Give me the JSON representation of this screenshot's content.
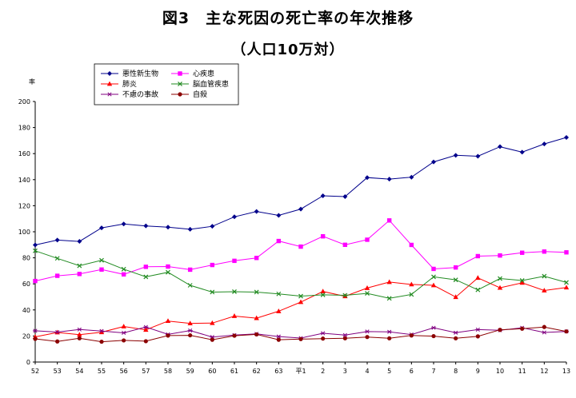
{
  "title": "図3　主な死因の死亡率の年次推移",
  "subtitle": "（人口10万対）",
  "chart_data": {
    "type": "line",
    "ylabel": "率",
    "ylim": [
      0,
      200
    ],
    "yticks": [
      0,
      20,
      40,
      60,
      80,
      100,
      120,
      140,
      160,
      180,
      200
    ],
    "categories": [
      "52",
      "53",
      "54",
      "55",
      "56",
      "57",
      "58",
      "59",
      "60",
      "61",
      "62",
      "63",
      "平1",
      "2",
      "3",
      "4",
      "5",
      "6",
      "7",
      "8",
      "9",
      "10",
      "11",
      "12",
      "13"
    ],
    "legend_position": "top-left",
    "grid": false,
    "series": [
      {
        "name": "悪性新生物",
        "color": "#00008b",
        "marker": "diamond",
        "values": [
          89.9,
          93.6,
          92.6,
          103.0,
          106.0,
          104.5,
          103.5,
          101.9,
          104.2,
          111.5,
          115.6,
          112.6,
          117.4,
          127.6,
          127.0,
          141.6,
          140.4,
          141.9,
          153.6,
          158.7,
          158.0,
          165.3,
          161.1,
          167.4,
          172.4
        ]
      },
      {
        "name": "心疾患",
        "color": "#ff00ff",
        "marker": "square",
        "values": [
          62.2,
          66.2,
          67.6,
          71.0,
          67.3,
          73.1,
          73.3,
          70.9,
          74.5,
          77.7,
          79.9,
          92.9,
          88.6,
          96.5,
          90.0,
          93.9,
          108.7,
          89.9,
          71.5,
          72.6,
          81.3,
          81.8,
          83.9,
          84.8,
          84.2
        ]
      },
      {
        "name": "肺炎",
        "color": "#ff0000",
        "marker": "triangle",
        "values": [
          19.3,
          22.7,
          21.0,
          22.9,
          27.3,
          24.7,
          31.5,
          29.7,
          29.9,
          35.3,
          33.7,
          39.0,
          46.0,
          54.2,
          50.5,
          56.8,
          61.4,
          59.6,
          58.9,
          49.9,
          64.6,
          57.0,
          60.8,
          54.9,
          57.2
        ]
      },
      {
        "name": "脳血管疾患",
        "color": "#228b22",
        "marker": "x",
        "values": [
          85.4,
          79.6,
          73.9,
          78.1,
          71.3,
          65.4,
          68.9,
          58.9,
          53.7,
          54.0,
          53.7,
          52.3,
          50.6,
          51.6,
          51.2,
          52.7,
          48.9,
          51.9,
          65.4,
          63.1,
          55.4,
          64.1,
          62.6,
          65.9,
          61.1
        ]
      },
      {
        "name": "不慮の事故",
        "color": "#800080",
        "marker": "star",
        "values": [
          24.0,
          23.0,
          25.0,
          23.8,
          22.4,
          26.9,
          21.2,
          24.2,
          19.2,
          20.7,
          21.6,
          19.6,
          18.4,
          22.1,
          20.7,
          23.4,
          23.2,
          21.1,
          26.3,
          22.5,
          24.9,
          24.4,
          26.3,
          22.7,
          23.5
        ]
      },
      {
        "name": "自殺",
        "color": "#8b0000",
        "marker": "circle",
        "values": [
          17.8,
          15.8,
          18.2,
          15.6,
          16.6,
          16.0,
          20.3,
          20.5,
          17.1,
          20.2,
          21.2,
          17.1,
          17.6,
          18.0,
          18.2,
          19.2,
          18.2,
          20.4,
          19.9,
          18.2,
          19.7,
          24.7,
          25.6,
          26.9,
          23.5
        ]
      }
    ]
  }
}
